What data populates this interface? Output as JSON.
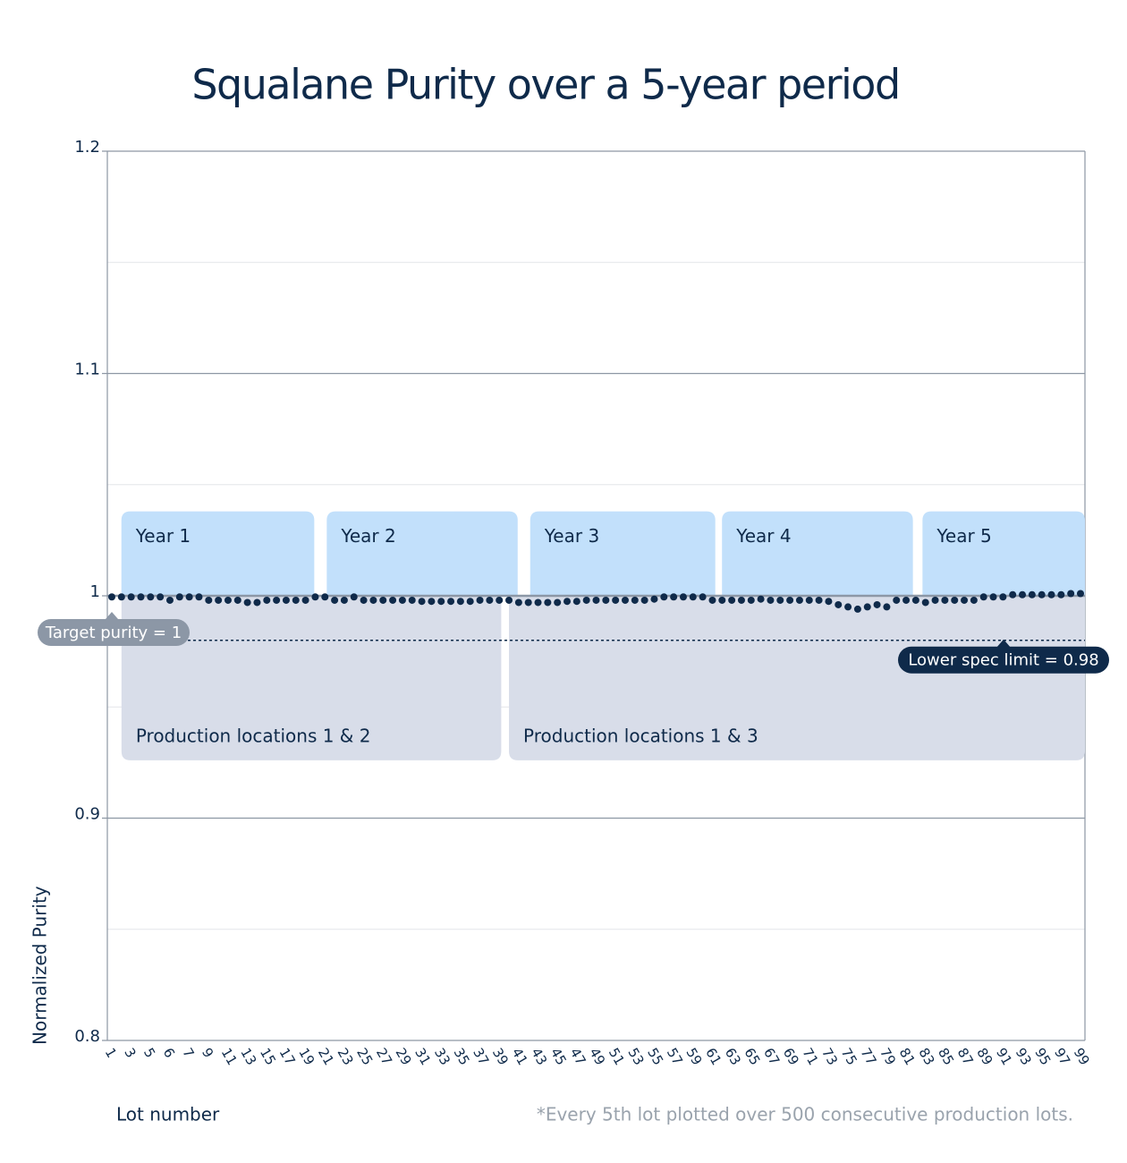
{
  "chart_data": {
    "type": "scatter",
    "title": "Squalane Purity over a 5-year period",
    "x_label": "Lot number",
    "y_label": "Normalized Purity",
    "footnote": "*Every 5th lot plotted over 500 consecutive production lots.",
    "categories": [
      "1",
      null,
      "3",
      null,
      "5",
      null,
      "6",
      null,
      "7",
      null,
      "9",
      null,
      "11",
      null,
      "13",
      null,
      "15",
      null,
      "17",
      null,
      "19",
      null,
      "21",
      null,
      "23",
      null,
      "25",
      null,
      "27",
      null,
      "29",
      null,
      "31",
      null,
      "33",
      null,
      "35",
      null,
      "37",
      null,
      "39",
      null,
      "41",
      null,
      "43",
      null,
      "45",
      null,
      "47",
      null,
      "49",
      null,
      "51",
      null,
      "53",
      null,
      "55",
      null,
      "57",
      null,
      "59",
      null,
      "61",
      null,
      "63",
      null,
      "65",
      null,
      "67",
      null,
      "69",
      null,
      "71",
      null,
      "73",
      null,
      "75",
      null,
      "77",
      null,
      "79",
      null,
      "81",
      null,
      "83",
      null,
      "85",
      null,
      "87",
      null,
      "89",
      null,
      "91",
      null,
      "93",
      null,
      "95",
      null,
      "97",
      null,
      "99"
    ],
    "values": [
      0.9995,
      0.9995,
      0.9995,
      0.9995,
      0.9995,
      0.9995,
      0.998,
      0.9995,
      0.9995,
      0.9995,
      0.998,
      0.998,
      0.998,
      0.998,
      0.997,
      0.997,
      0.998,
      0.998,
      0.998,
      0.998,
      0.998,
      0.9995,
      0.9995,
      0.998,
      0.998,
      0.9995,
      0.998,
      0.998,
      0.998,
      0.998,
      0.998,
      0.998,
      0.9975,
      0.9975,
      0.9975,
      0.9975,
      0.9975,
      0.9975,
      0.998,
      0.998,
      0.998,
      0.998,
      0.997,
      0.997,
      0.997,
      0.997,
      0.997,
      0.9975,
      0.9975,
      0.998,
      0.998,
      0.998,
      0.998,
      0.998,
      0.998,
      0.998,
      0.9985,
      0.9995,
      0.9995,
      0.9995,
      0.9995,
      0.9995,
      0.998,
      0.998,
      0.998,
      0.998,
      0.998,
      0.9985,
      0.998,
      0.998,
      0.998,
      0.998,
      0.998,
      0.998,
      0.9975,
      0.996,
      0.995,
      0.994,
      0.995,
      0.996,
      0.995,
      0.998,
      0.998,
      0.998,
      0.997,
      0.998,
      0.998,
      0.998,
      0.998,
      0.998,
      0.9995,
      0.9995,
      0.9995,
      1.0005,
      1.0005,
      1.0005,
      1.0005,
      1.0005,
      1.0005,
      1.001,
      1.001
    ],
    "color": "#0f2a4a",
    "ylim": [
      0.8,
      1.2
    ],
    "yticks": [
      0.8,
      0.9,
      1,
      1.1,
      1.2
    ],
    "minor_yticks": [
      0.85,
      0.95,
      1.05,
      1.15
    ],
    "grid": true,
    "target": {
      "label": "Target purity = 1",
      "value": 1
    },
    "lower_spec": {
      "label": "Lower spec limit = 0.98",
      "value": 0.98
    },
    "years": [
      "Year 1",
      "Year 2",
      "Year 3",
      "Year 4",
      "Year 5"
    ],
    "locations": [
      "Production locations 1 & 2",
      "Production locations 1 & 3"
    ]
  }
}
